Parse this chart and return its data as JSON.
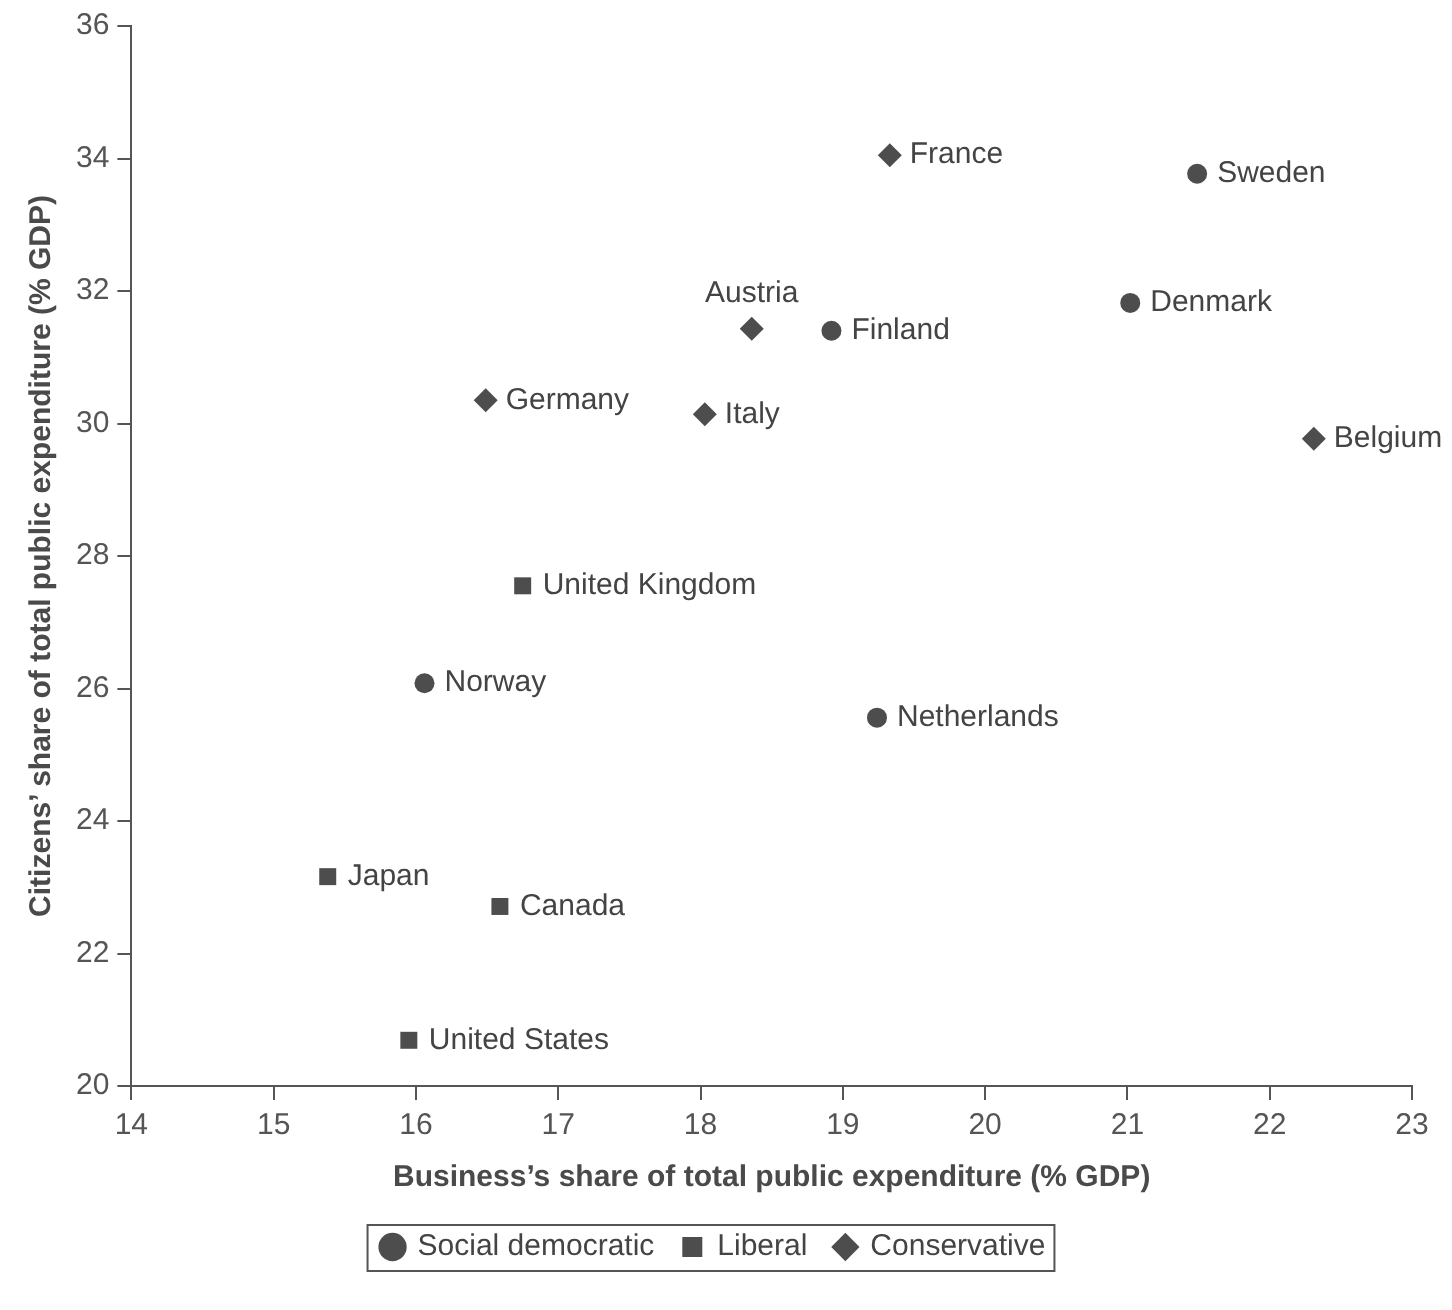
{
  "chart_data": {
    "type": "scatter",
    "xlabel": "Business’s share of total public expenditure (% GDP)",
    "ylabel": "Citizens’ share of total public expenditure (% GDP)",
    "xlim": [
      14,
      23
    ],
    "xticks": [
      14,
      15,
      16,
      17,
      18,
      19,
      20,
      21,
      22,
      23
    ],
    "ylim": [
      20,
      36
    ],
    "yticks": [
      20,
      22,
      24,
      26,
      28,
      30,
      32,
      34,
      36
    ],
    "grid": false,
    "legend": "bottom",
    "series": [
      {
        "name": "Social democratic",
        "color": "#4d4d4d",
        "marker": "circle",
        "x": [
          21.49,
          18.92,
          21.02,
          16.06,
          19.24
        ],
        "values": [
          33.77,
          31.4,
          31.82,
          26.08,
          25.56
        ]
      },
      {
        "name": "Liberal",
        "color": "#4d4d4d",
        "marker": "square",
        "x": [
          16.75,
          15.38,
          16.59,
          15.95
        ],
        "values": [
          27.55,
          23.16,
          22.71,
          20.69
        ]
      },
      {
        "name": "Conservative",
        "color": "#4d4d4d",
        "marker": "diamond",
        "x": [
          19.33,
          18.36,
          16.49,
          18.03,
          22.31
        ],
        "values": [
          34.05,
          31.43,
          30.35,
          30.14,
          29.77
        ]
      }
    ],
    "annotations": [
      {
        "text": "Sweden",
        "x": 21.49,
        "y": 33.77
      },
      {
        "text": "Finland",
        "x": 18.92,
        "y": 31.4
      },
      {
        "text": "Denmark",
        "x": 21.02,
        "y": 31.82
      },
      {
        "text": "Norway",
        "x": 16.06,
        "y": 26.08
      },
      {
        "text": "Netherlands",
        "x": 19.24,
        "y": 25.56
      },
      {
        "text": "United Kingdom",
        "x": 16.75,
        "y": 27.55
      },
      {
        "text": "Japan",
        "x": 15.38,
        "y": 23.16
      },
      {
        "text": "Canada",
        "x": 16.59,
        "y": 22.71
      },
      {
        "text": "United States",
        "x": 15.95,
        "y": 20.69
      },
      {
        "text": "France",
        "x": 19.33,
        "y": 34.05
      },
      {
        "text": "Austria",
        "x": 18.36,
        "y": 31.43
      },
      {
        "text": "Germany",
        "x": 16.49,
        "y": 30.35
      },
      {
        "text": "Italy",
        "x": 18.03,
        "y": 30.14
      },
      {
        "text": "Belgium",
        "x": 22.31,
        "y": 29.77
      }
    ]
  }
}
